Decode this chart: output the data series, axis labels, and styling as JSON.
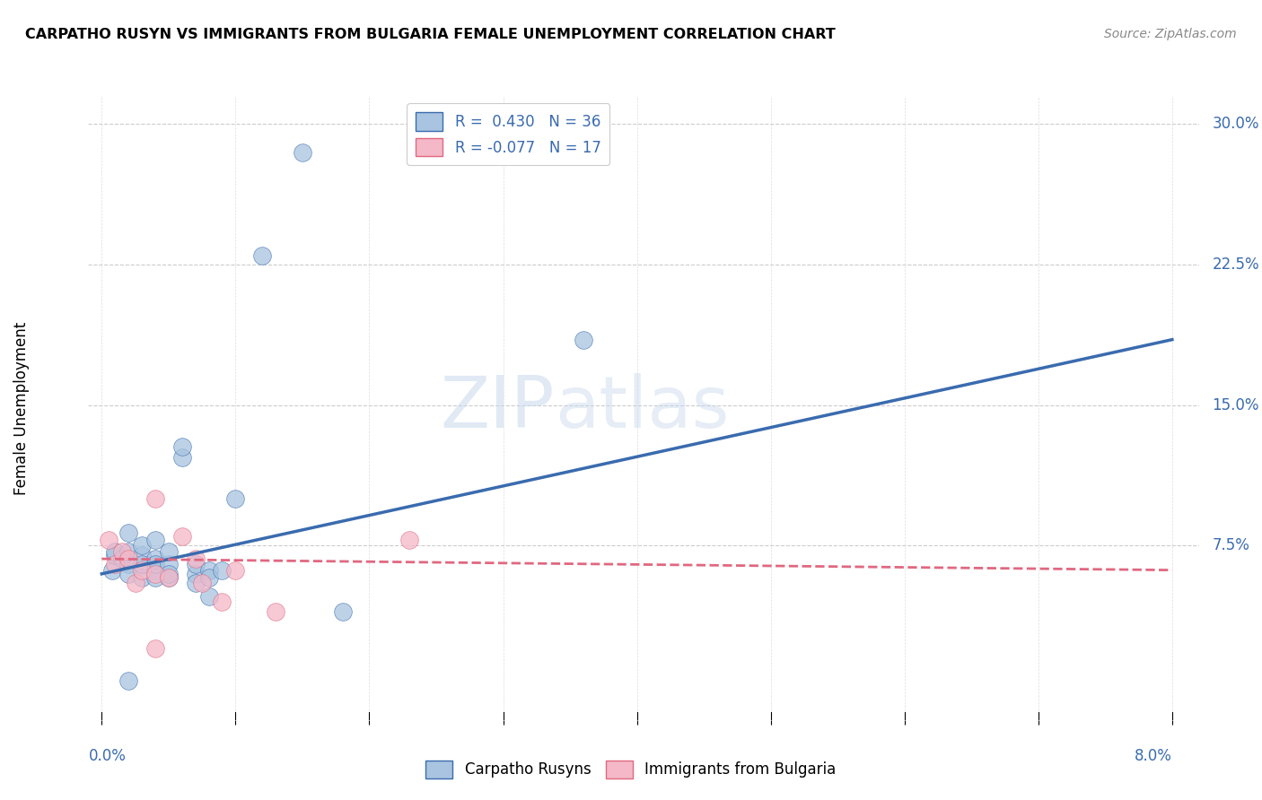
{
  "title": "CARPATHO RUSYN VS IMMIGRANTS FROM BULGARIA FEMALE UNEMPLOYMENT CORRELATION CHART",
  "source": "Source: ZipAtlas.com",
  "ylabel": "Female Unemployment",
  "y_ticks": [
    0.075,
    0.15,
    0.225,
    0.3
  ],
  "y_tick_labels": [
    "7.5%",
    "15.0%",
    "22.5%",
    "30.0%"
  ],
  "x_tick_positions": [
    0.0,
    0.01,
    0.02,
    0.03,
    0.04,
    0.05,
    0.06,
    0.07,
    0.08
  ],
  "x_tick_labels": [
    "0.0%",
    "",
    "",
    "",
    "",
    "",
    "",
    "",
    "8.0%"
  ],
  "legend_r1": "R =  0.430   N = 36",
  "legend_r2": "R = -0.077   N = 17",
  "blue_color": "#a8c4e0",
  "pink_color": "#f4b8c8",
  "blue_line_color": "#3a6baf",
  "pink_line_color": "#e06880",
  "watermark_zip": "ZIP",
  "watermark_atlas": "atlas",
  "blue_scatter_x": [
    0.0008,
    0.001,
    0.001,
    0.0015,
    0.002,
    0.002,
    0.002,
    0.002,
    0.003,
    0.003,
    0.003,
    0.003,
    0.004,
    0.004,
    0.004,
    0.004,
    0.004,
    0.005,
    0.005,
    0.005,
    0.005,
    0.006,
    0.006,
    0.007,
    0.007,
    0.007,
    0.008,
    0.008,
    0.008,
    0.009,
    0.01,
    0.012,
    0.015,
    0.018,
    0.036,
    0.002
  ],
  "blue_scatter_y": [
    0.062,
    0.07,
    0.072,
    0.068,
    0.065,
    0.06,
    0.072,
    0.082,
    0.058,
    0.07,
    0.065,
    0.075,
    0.062,
    0.058,
    0.068,
    0.078,
    0.065,
    0.065,
    0.058,
    0.072,
    0.06,
    0.122,
    0.128,
    0.06,
    0.055,
    0.065,
    0.062,
    0.058,
    0.048,
    0.062,
    0.1,
    0.23,
    0.285,
    0.04,
    0.185,
    0.003
  ],
  "pink_scatter_x": [
    0.0005,
    0.001,
    0.0015,
    0.002,
    0.0025,
    0.003,
    0.004,
    0.004,
    0.005,
    0.006,
    0.007,
    0.0075,
    0.009,
    0.01,
    0.013,
    0.023,
    0.004
  ],
  "pink_scatter_y": [
    0.078,
    0.065,
    0.072,
    0.068,
    0.055,
    0.062,
    0.1,
    0.06,
    0.058,
    0.08,
    0.068,
    0.055,
    0.045,
    0.062,
    0.04,
    0.078,
    0.02
  ],
  "blue_line_x": [
    0.0,
    0.08
  ],
  "blue_line_y": [
    0.06,
    0.185
  ],
  "pink_line_x": [
    0.0,
    0.08
  ],
  "pink_line_y": [
    0.068,
    0.062
  ],
  "xlim": [
    -0.001,
    0.082
  ],
  "ylim": [
    -0.018,
    0.315
  ]
}
